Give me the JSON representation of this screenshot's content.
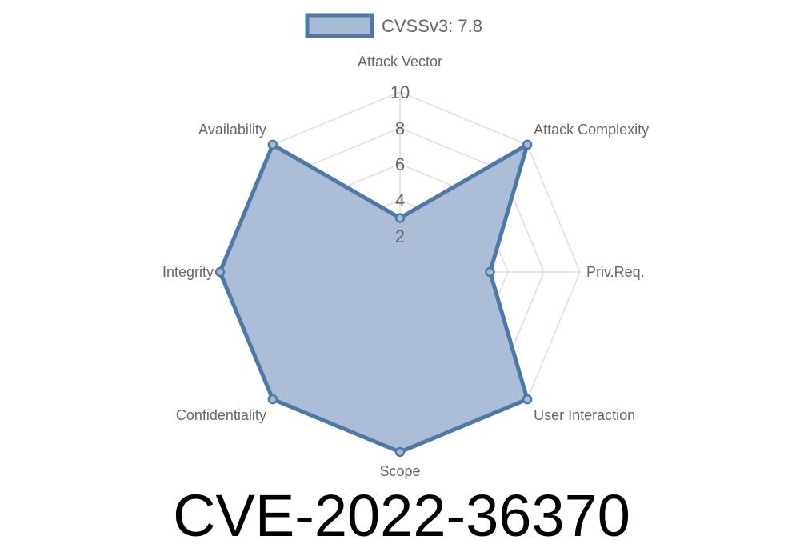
{
  "chart_data": {
    "type": "radar",
    "title": "CVE-2022-36370",
    "axes": [
      "Attack Vector",
      "Attack Complexity",
      "Priv.Req.",
      "User Interaction",
      "Scope",
      "Confidentiality",
      "Integrity",
      "Availability"
    ],
    "series": [
      {
        "name": "CVSSv3: 7.8",
        "values": [
          3.0,
          10,
          5.0,
          10,
          10,
          10,
          10,
          10
        ]
      }
    ],
    "rlim": [
      0,
      10
    ],
    "ticks": [
      "2",
      "4",
      "6",
      "8",
      "10"
    ],
    "grid": true,
    "legend_placement": "top",
    "colors": {
      "line": "#4e78a8",
      "fill": "#a8bbd5",
      "grid": "#dddddd"
    }
  }
}
